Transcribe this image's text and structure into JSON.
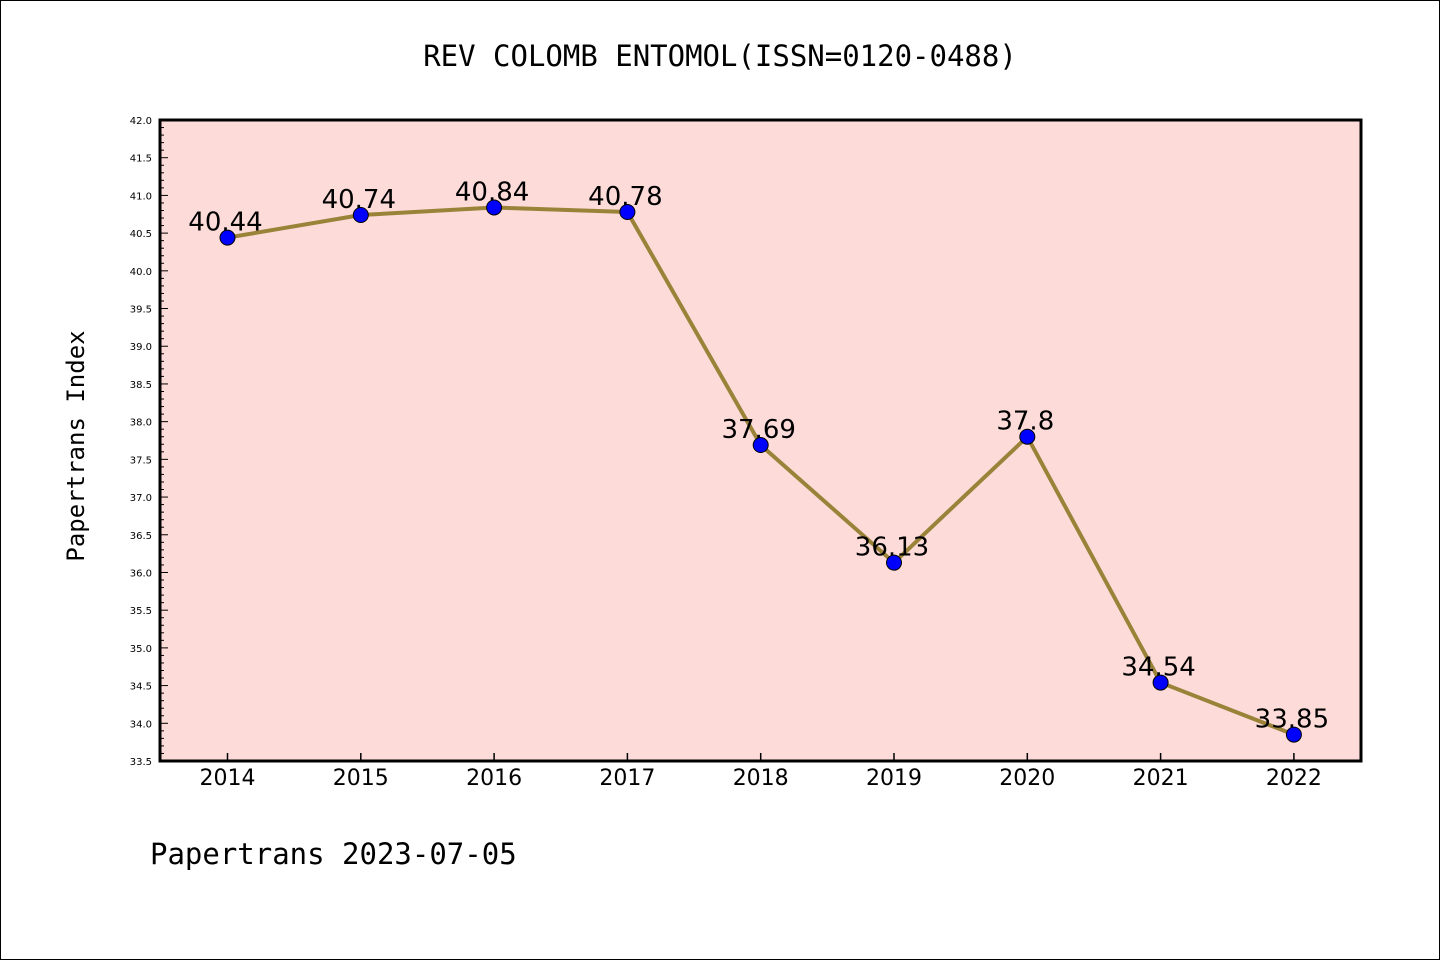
{
  "chart_data": {
    "type": "line",
    "title": "REV COLOMB ENTOMOL(ISSN=0120-0488)",
    "xlabel": "",
    "ylabel": "Papertrans Index",
    "categories": [
      "2014",
      "2015",
      "2016",
      "2017",
      "2018",
      "2019",
      "2020",
      "2021",
      "2022"
    ],
    "values": [
      40.44,
      40.74,
      40.84,
      40.78,
      37.69,
      36.13,
      37.8,
      34.54,
      33.85
    ],
    "data_labels": [
      "40.44",
      "40.74",
      "40.84",
      "40.78",
      "37.69",
      "36.13",
      "37.8",
      "34.54",
      "33.85"
    ],
    "ylim": [
      33.5,
      42.0
    ],
    "yticks": [
      "33.5",
      "34.0",
      "34.5",
      "35.0",
      "35.5",
      "36.0",
      "36.5",
      "37.0",
      "37.5",
      "38.0",
      "38.5",
      "39.0",
      "39.5",
      "40.0",
      "40.5",
      "41.0",
      "41.5",
      "42.0"
    ],
    "grid": false,
    "colors": {
      "plot_background": "#fddbd9",
      "line": "#9a8339",
      "marker": "#0000ff"
    }
  },
  "footer": "Papertrans 2023-07-05"
}
